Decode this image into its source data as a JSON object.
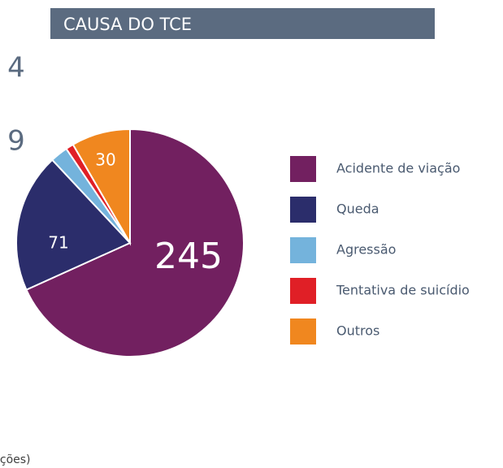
{
  "chart_data": {
    "type": "pie",
    "title": "CAUSA DO TCE",
    "categories": [
      "Acidente de viação",
      "Queda",
      "Agressão",
      "Tentativa de suicídio",
      "Outros"
    ],
    "values": [
      245,
      71,
      9,
      4,
      30
    ],
    "colors": [
      "#722060",
      "#2b2d6b",
      "#74b3dc",
      "#e01f26",
      "#f0871f"
    ],
    "legend": "right",
    "note": "ições)"
  }
}
